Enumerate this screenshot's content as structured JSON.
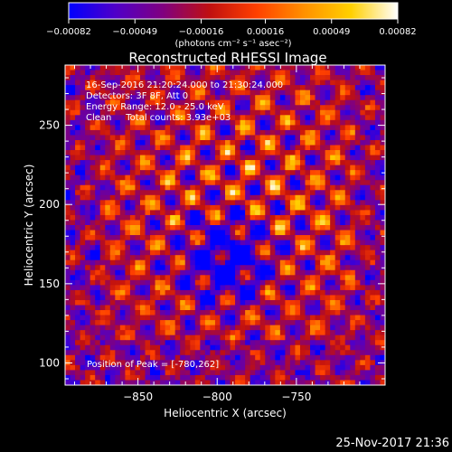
{
  "chart_data": {
    "type": "heatmap",
    "title": "Reconstructed RHESSI Image",
    "xlabel": "Heliocentric X (arcsec)",
    "ylabel": "Heliocentric Y (arcsec)",
    "xlim": [
      -896,
      -694
    ],
    "ylim": [
      86,
      288
    ],
    "xticks": [
      -850,
      -800,
      -750
    ],
    "yticks": [
      100,
      150,
      200,
      250
    ],
    "xtick_labels": [
      "−850",
      "−800",
      "−750"
    ],
    "ytick_labels": [
      "100",
      "150",
      "200",
      "250"
    ],
    "colorbar": {
      "range": [
        -0.00082,
        0.00082
      ],
      "ticks": [
        -0.00082,
        -0.00049,
        -0.00016,
        0.00016,
        0.00049,
        0.00082
      ],
      "tick_labels": [
        "−0.00082",
        "−0.00049",
        "−0.00016",
        "0.00016",
        "0.00049",
        "0.00082"
      ],
      "unit_label": "(photons cm⁻² s⁻¹ asec⁻²)",
      "colors": [
        "#0000ff",
        "#5000c8",
        "#800080",
        "#c01010",
        "#ff4000",
        "#ff9000",
        "#ffd000",
        "#ffffff"
      ]
    },
    "peak": [
      -780,
      262
    ],
    "annotations": [
      "16-Sep-2016 21:20:24.000 to 21:30:24.000",
      "Detectors: 3F 8F, Att 0",
      "Energy Range: 12.0 - 25.0 keV",
      "Clean     Total counts: 3.93e+03",
      "Position of Peak = [-780,262]"
    ],
    "grid": false
  },
  "footer": {
    "timestamp": "25-Nov-2017 21:36"
  }
}
